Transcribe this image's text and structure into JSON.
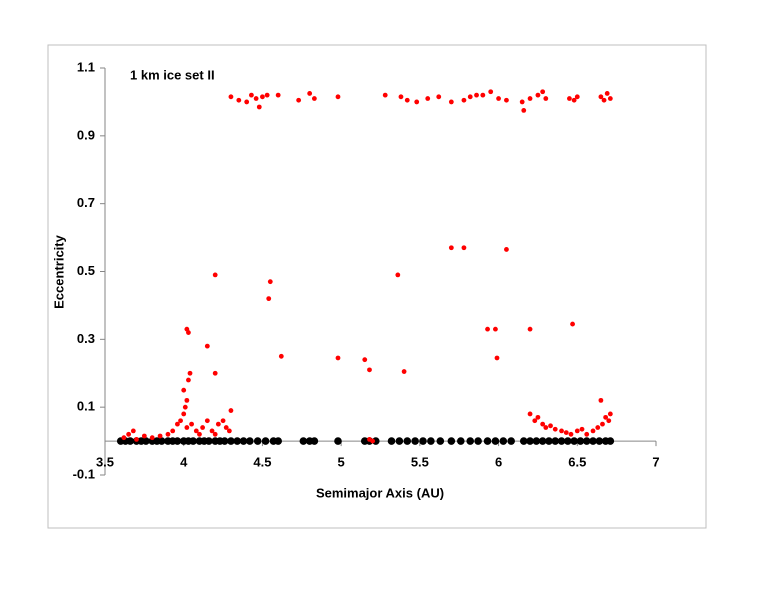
{
  "chart_data": {
    "type": "scatter",
    "annotation": "1 km ice set II",
    "xlabel": "Semimajor Axis (AU)",
    "ylabel": "Eccentricity",
    "xlim": [
      3.5,
      7
    ],
    "xticks": [
      3.5,
      4,
      4.5,
      5,
      5.5,
      6,
      6.5,
      7
    ],
    "ylim": [
      -0.1,
      1.1
    ],
    "yticks": [
      -0.1,
      0.1,
      0.3,
      0.5,
      0.7,
      0.9,
      1.1
    ],
    "grid": false,
    "series": [
      {
        "color": "#000000",
        "x": [
          3.6,
          3.63,
          3.66,
          3.7,
          3.73,
          3.76,
          3.8,
          3.83,
          3.86,
          3.9,
          3.93,
          3.96,
          4.0,
          4.03,
          4.06,
          4.1,
          4.13,
          4.16,
          4.2,
          4.23,
          4.26,
          4.3,
          4.34,
          4.38,
          4.42,
          4.47,
          4.52,
          4.57,
          4.6,
          4.76,
          4.8,
          4.83,
          4.98,
          5.15,
          5.18,
          5.22,
          5.32,
          5.37,
          5.42,
          5.47,
          5.52,
          5.57,
          5.63,
          5.7,
          5.76,
          5.82,
          5.87,
          5.93,
          5.98,
          6.03,
          6.08,
          6.16,
          6.2,
          6.24,
          6.28,
          6.32,
          6.36,
          6.4,
          6.44,
          6.48,
          6.52,
          6.56,
          6.6,
          6.64,
          6.68,
          6.71
        ],
        "values": [
          0,
          0,
          0,
          0,
          0,
          0,
          0,
          0,
          0,
          0,
          0,
          0,
          0,
          0,
          0,
          0,
          0,
          0,
          0,
          0,
          0,
          0,
          0,
          0,
          0,
          0,
          0,
          0,
          0,
          0,
          0,
          0,
          0,
          0,
          0,
          0,
          0,
          0,
          0,
          0,
          0,
          0,
          0,
          0,
          0,
          0,
          0,
          0,
          0,
          0,
          0,
          0,
          0,
          0,
          0,
          0,
          0,
          0,
          0,
          0,
          0,
          0,
          0,
          0,
          0,
          0
        ]
      },
      {
        "color": "#ff0000",
        "x": [
          4.3,
          4.35,
          4.4,
          4.43,
          4.46,
          4.48,
          4.5,
          4.53,
          4.6,
          4.73,
          4.8,
          4.83,
          4.98,
          5.28,
          5.38,
          5.42,
          5.48,
          5.55,
          5.62,
          5.7,
          5.78,
          5.82,
          5.86,
          5.9,
          5.95,
          6.0,
          6.05,
          6.15,
          6.16,
          6.2,
          6.25,
          6.28,
          6.3,
          6.45,
          6.48,
          6.5,
          6.65,
          6.67,
          6.69,
          6.71,
          4.2,
          4.55,
          4.54,
          4.15,
          4.02,
          4.03,
          4.2,
          4.62,
          4.98,
          5.15,
          5.18,
          5.36,
          5.4,
          5.7,
          5.78,
          6.05,
          5.93,
          5.98,
          5.99,
          6.2,
          6.47,
          6.65,
          4.3,
          4.04,
          4.03,
          3.62,
          3.65,
          3.68,
          3.7,
          3.75,
          3.8,
          3.85,
          3.9,
          3.93,
          3.96,
          3.98,
          4.0,
          4.01,
          4.02,
          4.0,
          4.02,
          4.05,
          4.08,
          4.1,
          4.12,
          4.15,
          4.18,
          4.2,
          4.22,
          4.25,
          4.27,
          4.29,
          5.18,
          5.2,
          6.2,
          6.23,
          6.25,
          6.28,
          6.3,
          6.33,
          6.36,
          6.4,
          6.43,
          6.46,
          6.5,
          6.53,
          6.56,
          6.6,
          6.63,
          6.66,
          6.68,
          6.7,
          6.71
        ],
        "values": [
          1.015,
          1.005,
          1.0,
          1.02,
          1.01,
          0.985,
          1.015,
          1.02,
          1.02,
          1.005,
          1.025,
          1.01,
          1.015,
          1.02,
          1.015,
          1.005,
          1.0,
          1.01,
          1.015,
          1.0,
          1.005,
          1.015,
          1.02,
          1.02,
          1.03,
          1.01,
          1.005,
          1.0,
          0.975,
          1.01,
          1.02,
          1.03,
          1.01,
          1.01,
          1.005,
          1.015,
          1.015,
          1.005,
          1.025,
          1.01,
          0.49,
          0.47,
          0.42,
          0.28,
          0.33,
          0.32,
          0.2,
          0.25,
          0.245,
          0.24,
          0.21,
          0.49,
          0.205,
          0.57,
          0.57,
          0.565,
          0.33,
          0.33,
          0.245,
          0.33,
          0.345,
          0.12,
          0.09,
          0.2,
          0.18,
          0.01,
          0.02,
          0.03,
          0.005,
          0.015,
          0.01,
          0.015,
          0.02,
          0.03,
          0.05,
          0.06,
          0.08,
          0.1,
          0.12,
          0.15,
          0.04,
          0.05,
          0.03,
          0.02,
          0.04,
          0.06,
          0.03,
          0.02,
          0.05,
          0.06,
          0.04,
          0.03,
          0.005,
          0,
          0.08,
          0.06,
          0.07,
          0.05,
          0.04,
          0.045,
          0.035,
          0.03,
          0.025,
          0.02,
          0.03,
          0.035,
          0.02,
          0.03,
          0.04,
          0.05,
          0.07,
          0.06,
          0.08
        ]
      }
    ]
  }
}
